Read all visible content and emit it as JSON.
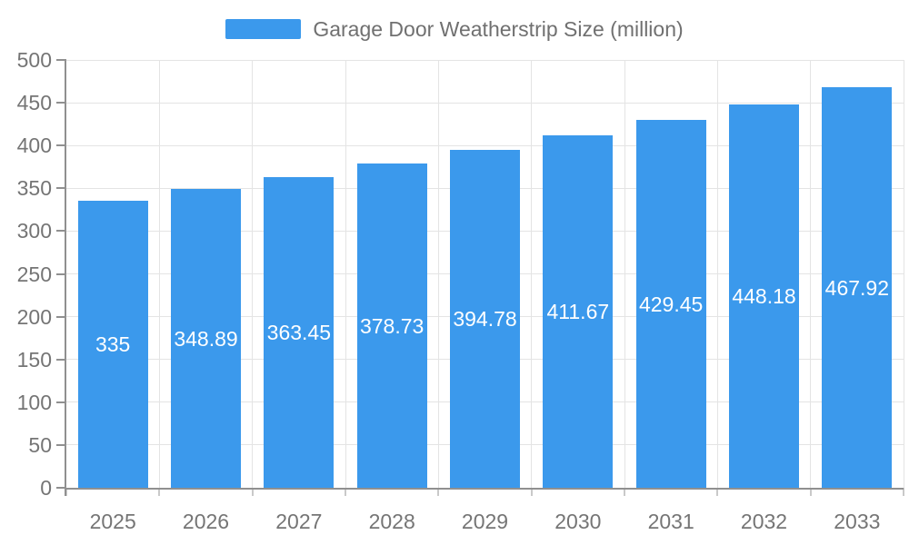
{
  "legend": {
    "label": "Garage Door Weatherstrip Size (million)"
  },
  "chart_data": {
    "type": "bar",
    "title": "Garage Door Weatherstrip Size (million)",
    "categories": [
      "2025",
      "2026",
      "2027",
      "2028",
      "2029",
      "2030",
      "2031",
      "2032",
      "2033"
    ],
    "values": [
      335,
      348.89,
      363.45,
      378.73,
      394.78,
      411.67,
      429.45,
      448.18,
      467.92
    ],
    "value_labels": [
      "335",
      "348.89",
      "363.45",
      "378.73",
      "394.78",
      "411.67",
      "429.45",
      "448.18",
      "467.92"
    ],
    "xlabel": "",
    "ylabel": "",
    "ylim": [
      0,
      500
    ],
    "y_ticks": [
      0,
      50,
      100,
      150,
      200,
      250,
      300,
      350,
      400,
      450,
      500
    ],
    "grid": true,
    "legend_position": "top",
    "value_label_position": "inside-center"
  },
  "colors": {
    "bar": "#3B99EC",
    "grid": "#E4E4E4",
    "axis_line": "#909090",
    "y_tick": "#909090",
    "x_tick": "#C9C9C9",
    "axis_text": "#757575",
    "legend_text": "#707070",
    "value_text": "#FFFFFF",
    "background": "#FFFFFF"
  }
}
